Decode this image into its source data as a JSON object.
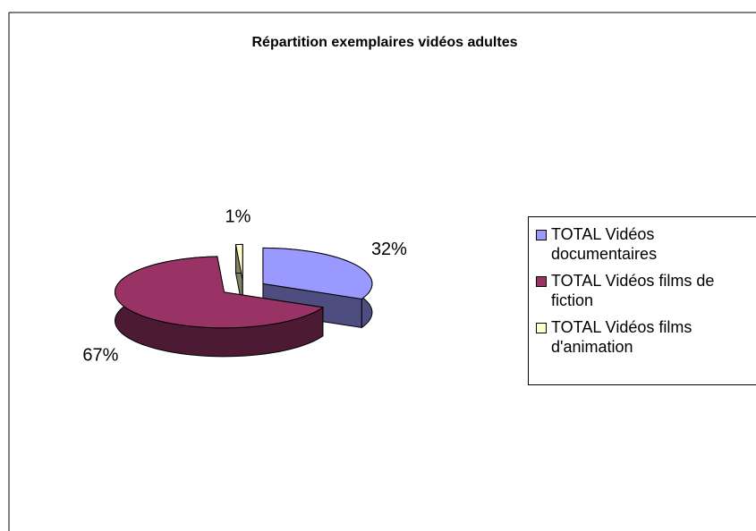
{
  "chart_data": {
    "type": "pie",
    "title": "Répartition exemplaires vidéos adultes",
    "categories": [
      "TOTAL Vidéos documentaires",
      "TOTAL Vidéos films de fiction",
      "TOTAL Vidéos films d'animation"
    ],
    "values": [
      32,
      67,
      1
    ],
    "value_labels": [
      "32%",
      "67%",
      "1%"
    ],
    "colors": [
      "#9999ff",
      "#993366",
      "#ffffcc"
    ],
    "legend": "right"
  }
}
